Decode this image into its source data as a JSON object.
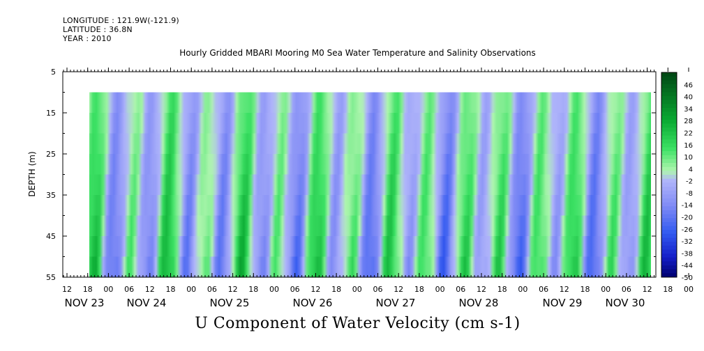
{
  "header": {
    "longitude": "LONGITUDE : 121.9W(-121.9)",
    "latitude": "LATITUDE : 36.8N",
    "year": "YEAR : 2010"
  },
  "chart_data": {
    "type": "heatmap",
    "title": "Hourly Gridded MBARI Mooring M0 Sea Water Temperature and Salinity Observations",
    "xlabel": "U Component of Water Velocity (cm s-1)",
    "ylabel": "DEPTH (m)",
    "ylim": [
      5,
      55
    ],
    "y_ticks": [
      5,
      15,
      25,
      35,
      45,
      55
    ],
    "x_hour_tick_labels": [
      "12",
      "18",
      "00",
      "06",
      "12",
      "18",
      "00",
      "06",
      "12",
      "18",
      "00",
      "06",
      "12",
      "18",
      "00",
      "06",
      "12",
      "18",
      "00",
      "06",
      "12",
      "18",
      "00",
      "06",
      "12",
      "18",
      "00",
      "06",
      "12",
      "18",
      "00",
      "06",
      "12"
    ],
    "x_date_labels": [
      "NOV 23",
      "NOV 24",
      "NOV 25",
      "NOV 26",
      "NOV 27",
      "NOV 28",
      "NOV 29",
      "NOV 30"
    ],
    "data_depth_range_m": [
      10,
      55
    ],
    "colorbar": {
      "tick_labels": [
        "46",
        "40",
        "34",
        "28",
        "22",
        "16",
        "10",
        "4",
        "-2",
        "-8",
        "-14",
        "-20",
        "-26",
        "-32",
        "-38",
        "-44",
        "-50"
      ],
      "range": [
        -50,
        52
      ]
    },
    "colors": {
      "negative_strong": "#00008b",
      "negative_mid": "#3050f0",
      "negative_light": "#a0a8f8",
      "positive_light": "#a0f0a0",
      "positive_mid": "#20d040",
      "positive_strong": "#005010"
    }
  }
}
